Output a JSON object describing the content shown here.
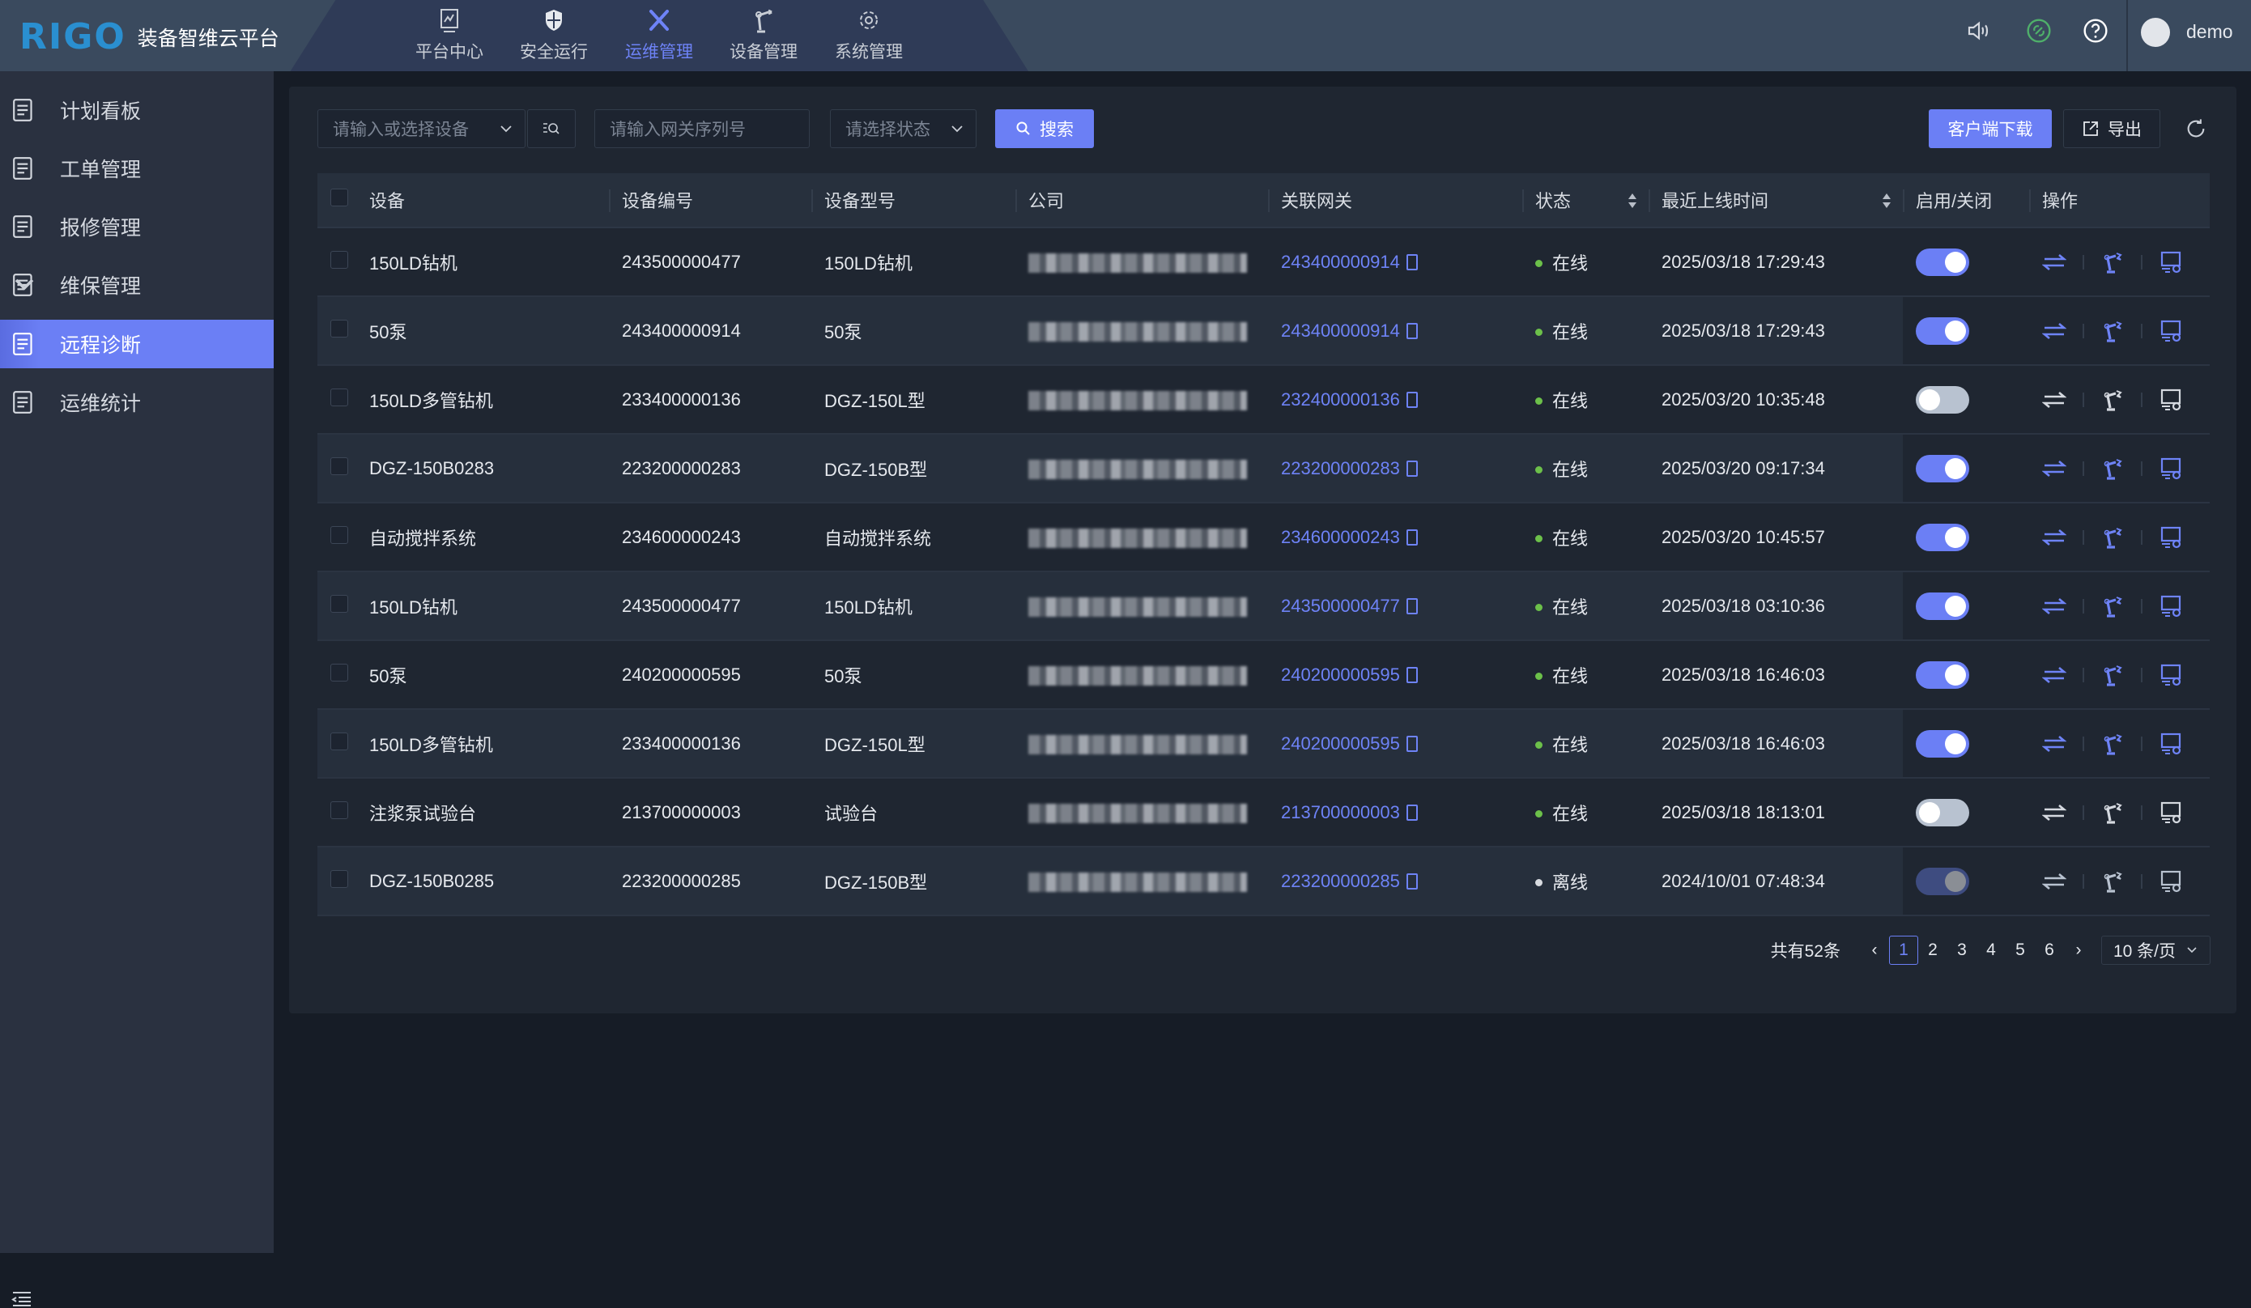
{
  "app": {
    "logo": "RIGO",
    "title": "装备智维云平台",
    "user": "demo"
  },
  "colors": {
    "accent": "#6b7ff5",
    "online": "#6cc04a",
    "header": "#3a4a5e",
    "sidebar": "#2a3140",
    "panel": "#1f2631"
  },
  "nav": [
    {
      "label": "平台中心",
      "icon": "monitor-chart-icon"
    },
    {
      "label": "安全运行",
      "icon": "shield-icon"
    },
    {
      "label": "运维管理",
      "icon": "tools-icon",
      "active": true
    },
    {
      "label": "设备管理",
      "icon": "robot-arm-icon"
    },
    {
      "label": "系统管理",
      "icon": "gear-icon"
    }
  ],
  "sidebar": [
    {
      "label": "计划看板",
      "icon": "doc-clock-icon"
    },
    {
      "label": "工单管理",
      "icon": "list-doc-icon"
    },
    {
      "label": "报修管理",
      "icon": "doc-gear-icon"
    },
    {
      "label": "维保管理",
      "icon": "doc-clock-icon",
      "expandable": true
    },
    {
      "label": "远程诊断",
      "icon": "monitor-diagnose-icon",
      "active": true
    },
    {
      "label": "运维统计",
      "icon": "chart-pie-icon"
    }
  ],
  "toolbar": {
    "device_placeholder": "请输入或选择设备",
    "serial_placeholder": "请输入网关序列号",
    "status_placeholder": "请选择状态",
    "search": "搜索",
    "download": "客户端下载",
    "export": "导出"
  },
  "table": {
    "headers": [
      "设备",
      "设备编号",
      "设备型号",
      "公司",
      "关联网关",
      "状态",
      "最近上线时间",
      "启用/关闭",
      "操作"
    ],
    "rows": [
      {
        "device": "150LD钻机",
        "code": "243500000477",
        "model": "150LD钻机",
        "gateway": "243400000914",
        "status": "在线",
        "online": true,
        "last": "2025/03/18 17:29:43",
        "enabled": "on"
      },
      {
        "device": "50泵",
        "code": "243400000914",
        "model": "50泵",
        "gateway": "243400000914",
        "status": "在线",
        "online": true,
        "last": "2025/03/18 17:29:43",
        "enabled": "on"
      },
      {
        "device": "150LD多管钻机",
        "code": "233400000136",
        "model": "DGZ-150L型",
        "gateway": "232400000136",
        "status": "在线",
        "online": true,
        "last": "2025/03/20 10:35:48",
        "enabled": "off"
      },
      {
        "device": "DGZ-150B0283",
        "code": "223200000283",
        "model": "DGZ-150B型",
        "gateway": "223200000283",
        "status": "在线",
        "online": true,
        "last": "2025/03/20 09:17:34",
        "enabled": "on"
      },
      {
        "device": "自动搅拌系统",
        "code": "234600000243",
        "model": "自动搅拌系统",
        "gateway": "234600000243",
        "status": "在线",
        "online": true,
        "last": "2025/03/20 10:45:57",
        "enabled": "on"
      },
      {
        "device": "150LD钻机",
        "code": "243500000477",
        "model": "150LD钻机",
        "gateway": "243500000477",
        "status": "在线",
        "online": true,
        "last": "2025/03/18 03:10:36",
        "enabled": "on"
      },
      {
        "device": "50泵",
        "code": "240200000595",
        "model": "50泵",
        "gateway": "240200000595",
        "status": "在线",
        "online": true,
        "last": "2025/03/18 16:46:03",
        "enabled": "on"
      },
      {
        "device": "150LD多管钻机",
        "code": "233400000136",
        "model": "DGZ-150L型",
        "gateway": "240200000595",
        "status": "在线",
        "online": true,
        "last": "2025/03/18 16:46:03",
        "enabled": "on"
      },
      {
        "device": "注浆泵试验台",
        "code": "213700000003",
        "model": "试验台",
        "gateway": "213700000003",
        "status": "在线",
        "online": true,
        "last": "2025/03/18 18:13:01",
        "enabled": "off"
      },
      {
        "device": "DGZ-150B0285",
        "code": "223200000285",
        "model": "DGZ-150B型",
        "gateway": "223200000285",
        "status": "离线",
        "online": false,
        "last": "2024/10/01 07:48:34",
        "enabled": "disabled"
      }
    ]
  },
  "pagination": {
    "total": "共有52条",
    "pages": [
      "1",
      "2",
      "3",
      "4",
      "5",
      "6"
    ],
    "current": "1",
    "page_size": "10 条/页"
  }
}
